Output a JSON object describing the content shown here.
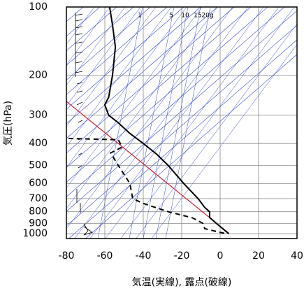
{
  "chart_data": {
    "type": "line",
    "yscale": "log",
    "x_label": "気温(実線), 露点(破線)",
    "y_label": "気圧(hPa)",
    "xlim": [
      -80,
      40
    ],
    "xticks": [
      -80,
      -60,
      -40,
      -20,
      0,
      20,
      40
    ],
    "ylim": [
      100,
      1050
    ],
    "yticks": [
      100,
      200,
      300,
      400,
      500,
      600,
      700,
      800,
      900,
      1000
    ],
    "grid": true,
    "mixing_ratio_labels": [
      "1",
      "5",
      "10",
      "15",
      "20g"
    ],
    "series": [
      {
        "name": "気温",
        "color": "#000000",
        "dash": false,
        "pressure": [
          100,
          120,
          150,
          200,
          250,
          270,
          300,
          324,
          361,
          400,
          446,
          500,
          600,
          700,
          766,
          800,
          848,
          900,
          1000
        ],
        "values": [
          -57.5,
          -56,
          -54.5,
          -56,
          -58,
          -60,
          -58,
          -53,
          -47,
          -40,
          -33,
          -27,
          -19,
          -11.5,
          -8,
          -5.5,
          -5.5,
          -2,
          4.5
        ]
      },
      {
        "name": "露点",
        "color": "#000000",
        "dash": true,
        "pressure": [
          380,
          385,
          415,
          440,
          500,
          600,
          700,
          735,
          800,
          850,
          900,
          950,
          1000
        ],
        "values": [
          -79,
          -53,
          -51,
          -57,
          -53,
          -47,
          -45.5,
          -40,
          -27,
          -14.5,
          -9,
          -8,
          3
        ]
      }
    ]
  }
}
